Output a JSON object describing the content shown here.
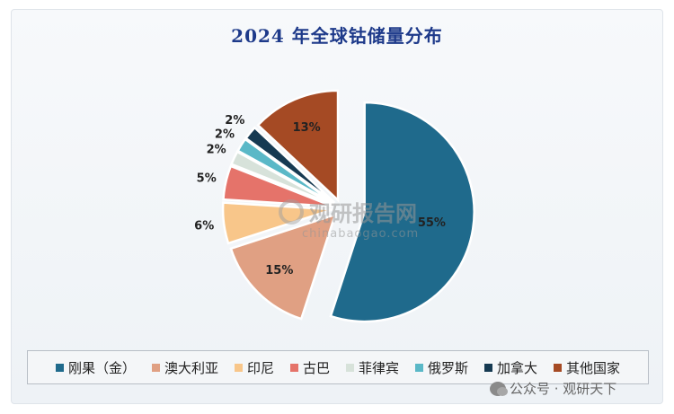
{
  "chart_data": {
    "type": "pie",
    "title": "2024 年全球钴储量分布",
    "categories": [
      "刚果（金）",
      "澳大利亚",
      "印尼",
      "古巴",
      "菲律宾",
      "俄罗斯",
      "加拿大",
      "其他国家"
    ],
    "values": [
      55,
      15,
      6,
      5,
      2,
      2,
      2,
      13
    ],
    "value_labels": [
      "55%",
      "15%",
      "6%",
      "5%",
      "2%",
      "2%",
      "2%",
      "13%"
    ],
    "colors": [
      "#1f6a8c",
      "#e0a083",
      "#f8c68a",
      "#e5736a",
      "#d7e2da",
      "#5ab8c7",
      "#163a52",
      "#a54a24"
    ],
    "legend_position": "bottom"
  },
  "watermark": {
    "brand": "观研报告网",
    "url": "chinabaogao.com"
  },
  "source_tag": {
    "text": "公众号 · 观研天下"
  }
}
